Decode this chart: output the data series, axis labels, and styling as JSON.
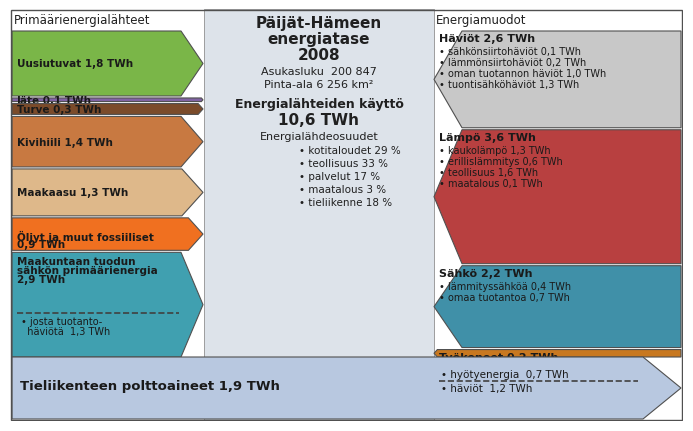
{
  "title_line1": "Päijät-Hämeen",
  "title_line2": "energiatase",
  "title_line3": "2008",
  "subtitle1": "Asukasluku  200 847",
  "subtitle2": "Pinta-ala 6 256 km²",
  "main_label": "Energialähteiden käyttö",
  "main_value": "10,6 TWh",
  "energialabel": "Energialähdeosuudet",
  "bullet_items": [
    "kotitaloudet 29 %",
    "teollisuus 33 %",
    "palvelut 17 %",
    "maatalous 3 %",
    "tieliikenne 18 %"
  ],
  "left_header": "Primäärienergialähteet",
  "right_header": "Energiamuodot",
  "left_arrows": [
    {
      "label": "Uusiutuvat 1,8 TWh",
      "value": 1.8,
      "color": "#7ab648",
      "multiline": false
    },
    {
      "label": "Jäte 0,1 TWh",
      "value": 0.1,
      "color": "#8063a3",
      "multiline": false
    },
    {
      "label": "Turve 0,3 TWh",
      "value": 0.3,
      "color": "#7b4b2a",
      "multiline": false
    },
    {
      "label": "Kivihiili 1,4 TWh",
      "value": 1.4,
      "color": "#c87941",
      "multiline": false
    },
    {
      "label": "Maakaasu 1,3 TWh",
      "value": 1.3,
      "color": "#deb88a",
      "multiline": false
    },
    {
      "label": "Öljyt ja muut fossiiliset\n0,9 TWh",
      "value": 0.9,
      "color": "#f07020",
      "multiline": true
    },
    {
      "label": "Maakuntaan tuodun\nsähkön primäärienergia\n2,9 TWh",
      "value": 2.9,
      "color": "#40a0b0",
      "multiline": true,
      "extra": "• josta tuotanto-\n  häviötä  1,3 TWh",
      "dashed": true
    }
  ],
  "right_arrows": [
    {
      "label": "Häviöt 2,6 TWh",
      "value": 2.6,
      "color": "#c8c8c8",
      "items": [
        "• sähkönsiirtohäviöt 0,1 TWh",
        "• lämmönsiirtohäviöt 0,2 TWh",
        "• oman tuotannon häviöt 1,0 TWh",
        "• tuontisähköhäviöt 1,3 TWh"
      ]
    },
    {
      "label": "Lämpö 3,6 TWh",
      "value": 3.6,
      "color": "#b84040",
      "items": [
        "• kaukolämpö 1,3 TWh",
        "• erillislämmitys 0,6 TWh",
        "• teollisuus 1,6 TWh",
        "• maatalous 0,1 TWh"
      ]
    },
    {
      "label": "Sähkö 2,2 TWh",
      "value": 2.2,
      "color": "#4090a8",
      "items": [
        "• lämmityssähköä 0,4 TWh",
        "• omaa tuotantoa 0,7 TWh"
      ]
    },
    {
      "label": "Työkoneet 0,2 TWh",
      "value": 0.2,
      "color": "#c87820",
      "items": []
    }
  ],
  "bottom_arrow": {
    "label": "Tieliikenteen polttoaineet 1,9 TWh",
    "color": "#b8c8e0",
    "items": [
      "• hyötyenergia  0,7 TWh",
      "• häviöt  1,2 TWh"
    ]
  },
  "bg_color": "#ffffff",
  "center_bg": "#dde3ea",
  "border_color": "#505050"
}
